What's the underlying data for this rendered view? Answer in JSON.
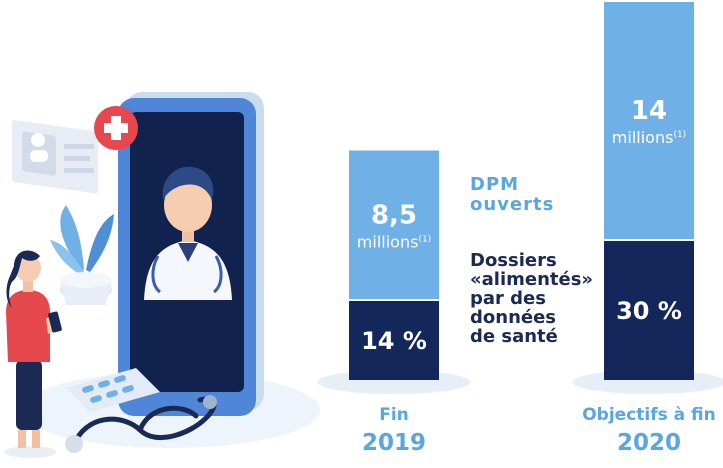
{
  "colors": {
    "light_blue": "#6fb0e6",
    "navy": "#14275a",
    "label_blue": "#5aa6de",
    "text_dark": "#1c2a52",
    "shadow": "#e6eff8"
  },
  "legend": {
    "dpm_label": "DPM\nouverts",
    "fed_label": "Dossiers\n«alimentés»\npar des\ndonnées\nde santé"
  },
  "illustration": {
    "icons": [
      "doctor-on-phone-icon",
      "medical-cross-icon",
      "profile-card-icon",
      "plant-icon",
      "woman-with-phone-icon",
      "pill-blister-icon",
      "stethoscope-icon"
    ]
  },
  "chart_data": {
    "type": "bar",
    "categories": [
      {
        "line1": "Fin",
        "line2": "2019"
      },
      {
        "line1": "Objectifs à fin",
        "line2": "2020"
      }
    ],
    "series": [
      {
        "name": "DPM ouverts",
        "values": [
          8.5,
          14
        ],
        "value_labels": [
          "8,5",
          "14"
        ],
        "unit_labels": [
          "millions",
          "millions"
        ],
        "footnote": "(1)"
      },
      {
        "name": "Dossiers «alimentés» par des données de santé",
        "values": [
          14,
          30
        ],
        "value_labels": [
          "14 %",
          "30 %"
        ]
      }
    ]
  }
}
